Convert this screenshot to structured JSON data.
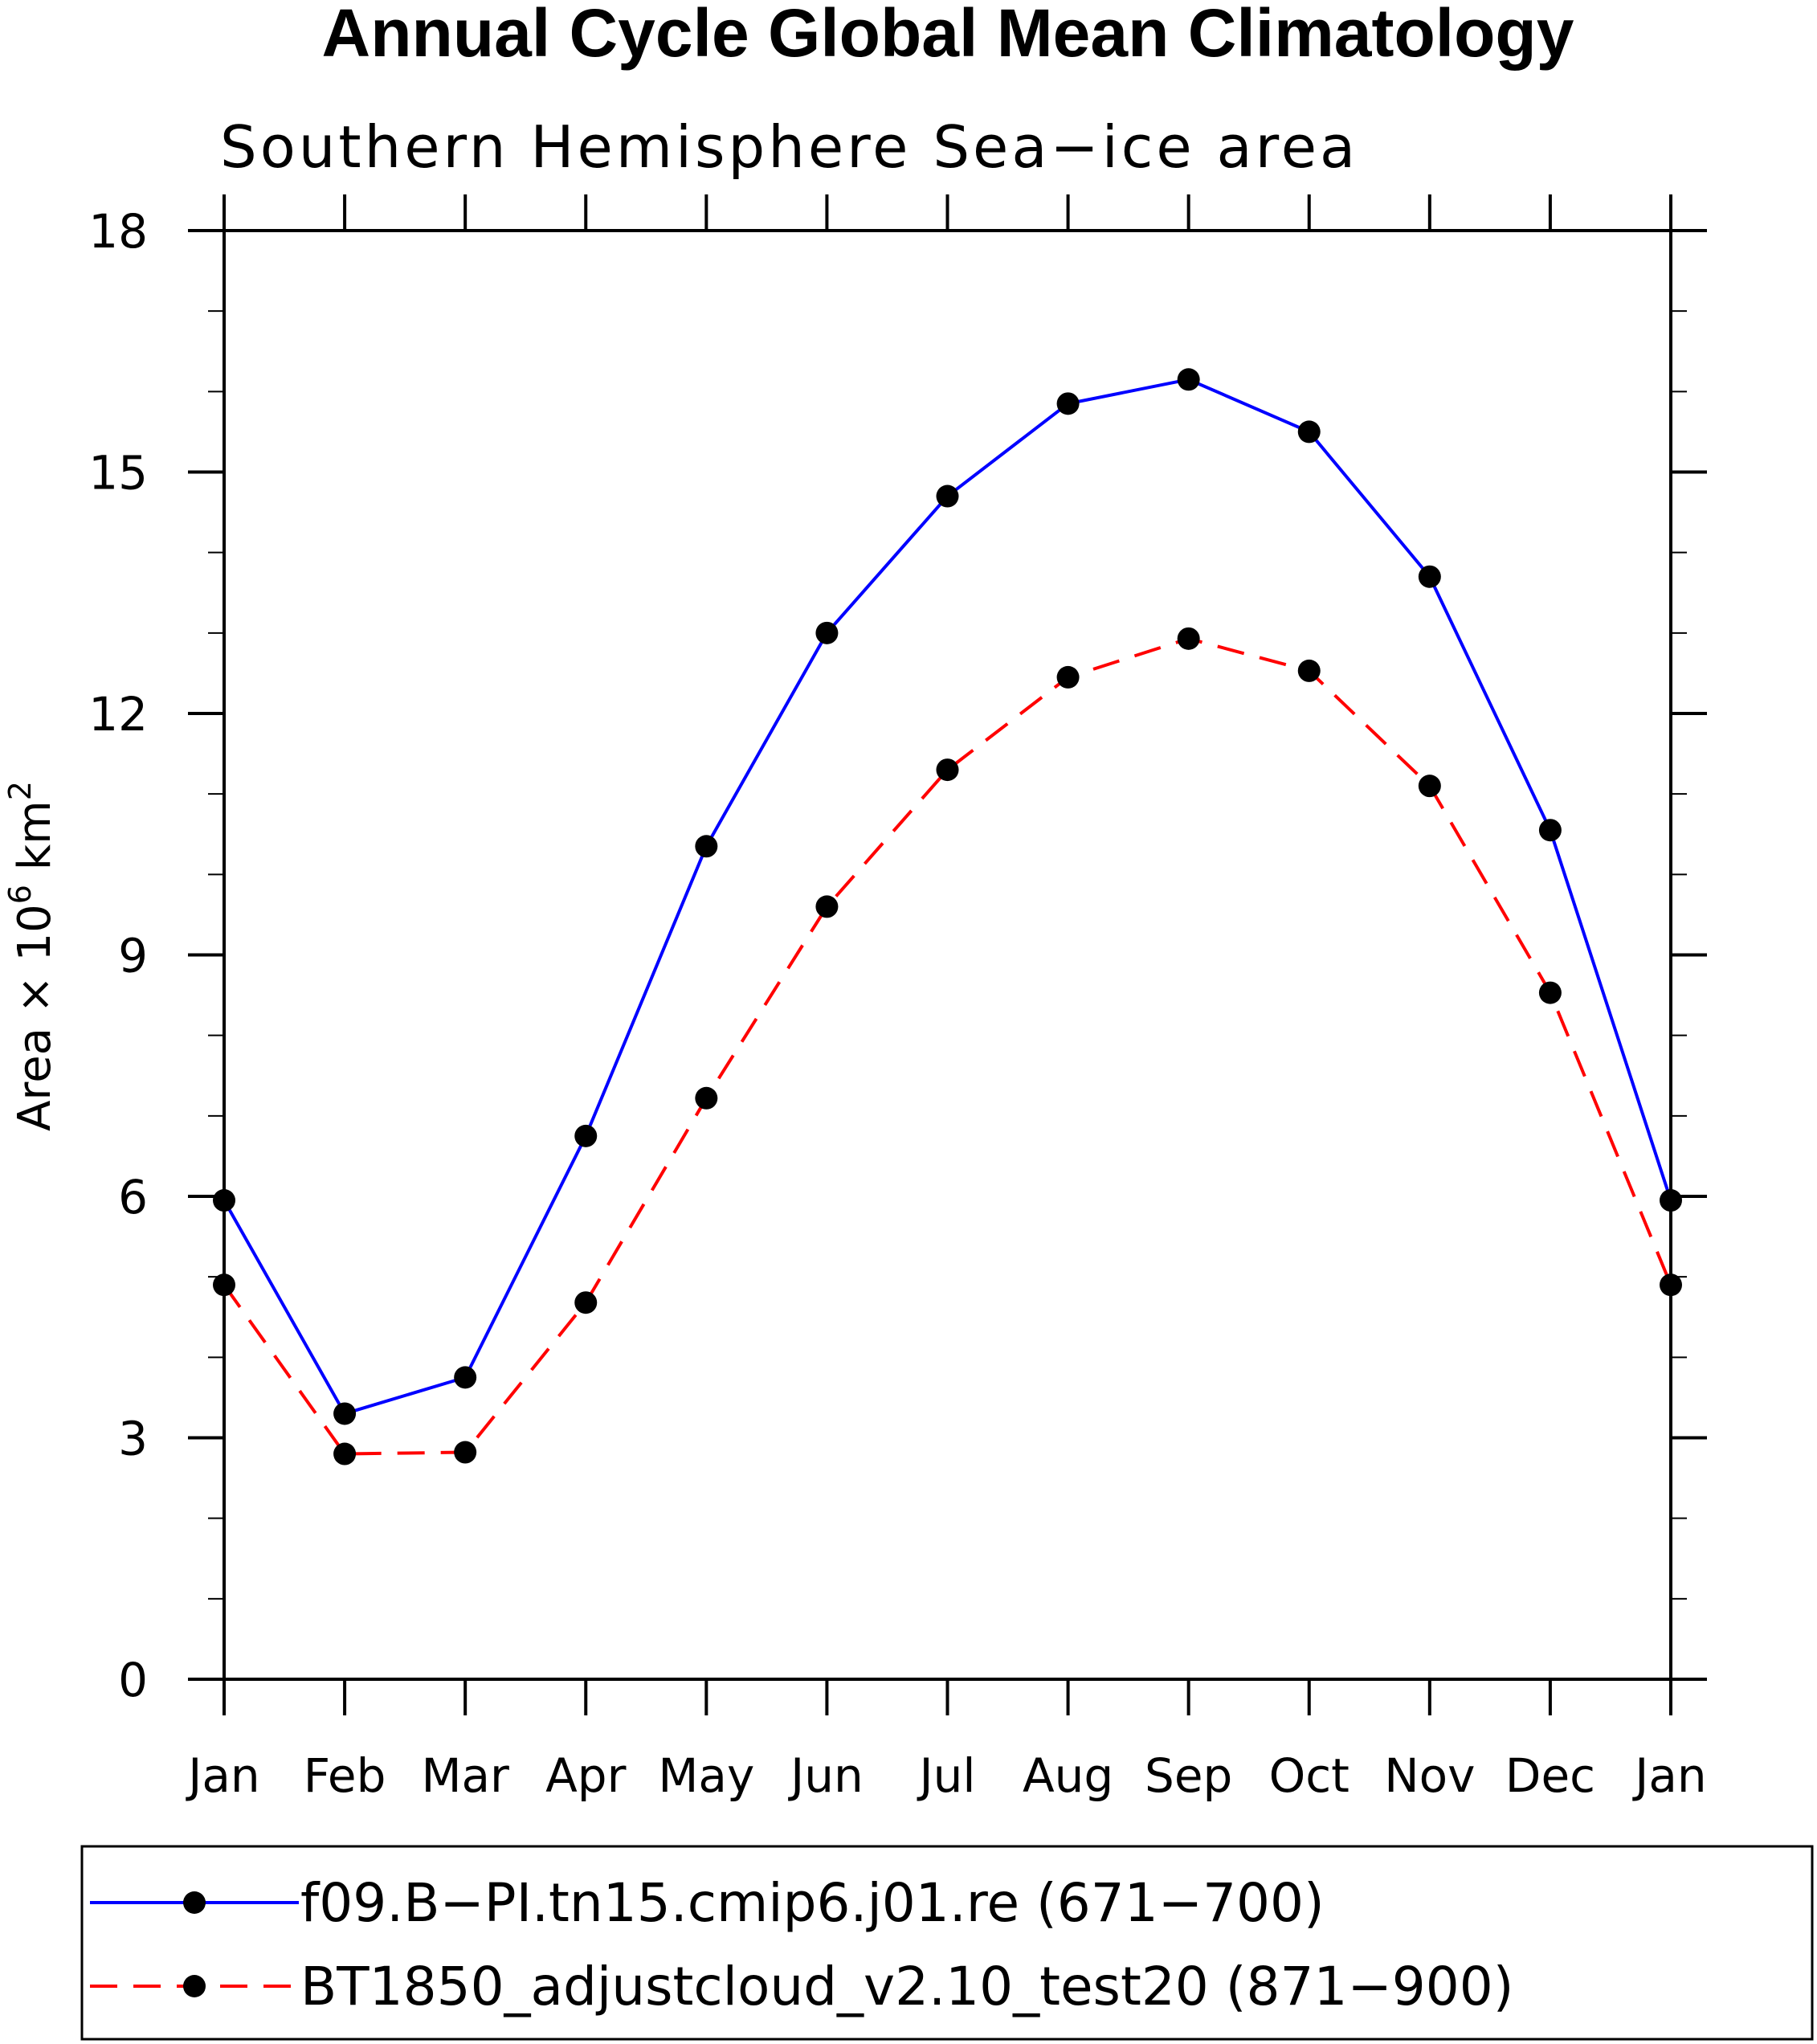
{
  "chart_data": {
    "type": "line",
    "title": "Annual Cycle Global Mean Climatology",
    "subtitle": "Southern Hemisphere Sea−ice area",
    "ylabel_main": "Area × 10",
    "ylabel_exp": "6",
    "ylabel_unit": " km",
    "ylabel_unit_exp": "2",
    "categories": [
      "Jan",
      "Feb",
      "Mar",
      "Apr",
      "May",
      "Jun",
      "Jul",
      "Aug",
      "Sep",
      "Oct",
      "Nov",
      "Dec",
      "Jan"
    ],
    "ylim": [
      0,
      18
    ],
    "yticks": [
      0,
      3,
      6,
      9,
      12,
      15,
      18
    ],
    "series": [
      {
        "name": "f09.B−PI.tn15.cmip6.j01.re (671−700)",
        "color": "#0000ff",
        "dash": "solid",
        "values": [
          5.95,
          3.3,
          3.75,
          6.75,
          10.35,
          13.0,
          14.7,
          15.85,
          16.15,
          15.5,
          13.7,
          10.55,
          5.95
        ]
      },
      {
        "name": "BT1850_adjustcloud_v2.10_test20 (871−900)",
        "color": "#ff0000",
        "dash": "dashed",
        "values": [
          4.9,
          2.8,
          2.82,
          4.68,
          7.22,
          9.6,
          11.3,
          12.45,
          12.93,
          12.53,
          11.1,
          8.53,
          4.9
        ]
      }
    ],
    "legend_position": "bottom"
  }
}
